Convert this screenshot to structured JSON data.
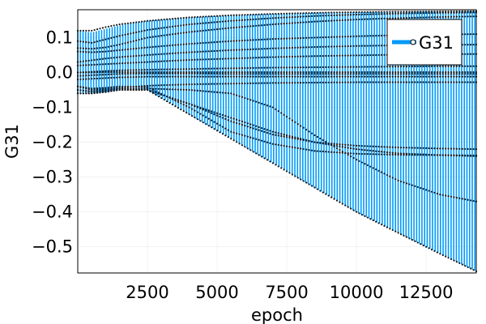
{
  "chart_data": {
    "type": "line",
    "title": "",
    "xlabel": "epoch",
    "ylabel": "G31",
    "xlim": [
      0,
      14300
    ],
    "ylim": [
      -0.575,
      0.18
    ],
    "xticks": [
      2500,
      5000,
      7500,
      10000,
      12500
    ],
    "xtick_labels": [
      "2500",
      "5000",
      "7500",
      "10000",
      "12500"
    ],
    "yticks": [
      0.1,
      0.0,
      -0.1,
      -0.2,
      -0.3,
      -0.4,
      -0.5
    ],
    "ytick_labels": [
      "0.1",
      "0.0",
      "−0.1",
      "−0.2",
      "−0.3",
      "−0.4",
      "−0.5"
    ],
    "grid": true,
    "legend_position": "top-right",
    "series": [
      {
        "name": "G31",
        "color": "#009af9",
        "marker_color": "#1a1a1a",
        "x": [
          0,
          500,
          1000,
          1500,
          2500,
          4000,
          5500,
          7000,
          8500,
          10000,
          11500,
          13000,
          14300
        ],
        "upper": [
          0.12,
          0.115,
          0.125,
          0.135,
          0.148,
          0.158,
          0.164,
          0.168,
          0.171,
          0.173,
          0.174,
          0.175,
          0.176
        ],
        "lower": [
          -0.06,
          -0.06,
          -0.056,
          -0.05,
          -0.05,
          -0.12,
          -0.19,
          -0.26,
          -0.33,
          -0.4,
          -0.46,
          -0.52,
          -0.57
        ],
        "traces": [
          [
            0.12,
            0.12,
            0.13,
            0.138,
            0.148,
            0.158,
            0.164,
            0.168,
            0.171,
            0.173,
            0.174,
            0.175,
            0.176
          ],
          [
            0.09,
            0.085,
            0.095,
            0.105,
            0.122,
            0.138,
            0.148,
            0.156,
            0.162,
            0.166,
            0.169,
            0.171,
            0.172
          ],
          [
            0.07,
            0.068,
            0.072,
            0.08,
            0.1,
            0.116,
            0.128,
            0.138,
            0.146,
            0.152,
            0.156,
            0.159,
            0.161
          ],
          [
            0.06,
            0.058,
            0.06,
            0.064,
            0.072,
            0.082,
            0.09,
            0.096,
            0.1,
            0.104,
            0.107,
            0.109,
            0.11
          ],
          [
            0.03,
            0.035,
            0.04,
            0.044,
            0.05,
            0.058,
            0.064,
            0.069,
            0.073,
            0.076,
            0.078,
            0.079,
            0.08
          ],
          [
            0.02,
            0.022,
            0.024,
            0.026,
            0.03,
            0.036,
            0.04,
            0.044,
            0.047,
            0.049,
            0.051,
            0.052,
            0.053
          ],
          [
            0.0,
            0.002,
            0.004,
            0.006,
            0.008,
            0.01,
            0.012,
            0.014,
            0.015,
            0.016,
            0.017,
            0.018,
            0.018
          ],
          [
            0.0,
            0.0,
            0.001,
            0.001,
            0.001,
            0.001,
            0.001,
            0.001,
            0.001,
            0.001,
            0.001,
            0.001,
            0.001
          ],
          [
            -0.01,
            -0.008,
            -0.006,
            -0.004,
            -0.003,
            -0.003,
            -0.004,
            -0.004,
            -0.004,
            -0.004,
            -0.004,
            -0.004,
            -0.004
          ],
          [
            -0.02,
            -0.018,
            -0.016,
            -0.014,
            -0.012,
            -0.012,
            -0.012,
            -0.012,
            -0.012,
            -0.012,
            -0.012,
            -0.012,
            -0.012
          ],
          [
            -0.04,
            -0.05,
            -0.048,
            -0.044,
            -0.038,
            -0.034,
            -0.032,
            -0.03,
            -0.029,
            -0.028,
            -0.028,
            -0.028,
            -0.028
          ],
          [
            -0.05,
            -0.055,
            -0.052,
            -0.045,
            -0.05,
            -0.09,
            -0.14,
            -0.178,
            -0.2,
            -0.21,
            -0.215,
            -0.218,
            -0.22
          ],
          [
            -0.04,
            -0.046,
            -0.044,
            -0.04,
            -0.042,
            -0.1,
            -0.17,
            -0.205,
            -0.225,
            -0.233,
            -0.236,
            -0.237,
            -0.238
          ],
          [
            -0.06,
            -0.06,
            -0.056,
            -0.05,
            -0.05,
            -0.09,
            -0.13,
            -0.17,
            -0.2,
            -0.22,
            -0.232,
            -0.237,
            -0.24
          ],
          [
            -0.05,
            -0.055,
            -0.052,
            -0.048,
            -0.046,
            -0.05,
            -0.06,
            -0.1,
            -0.18,
            -0.25,
            -0.31,
            -0.35,
            -0.37
          ],
          [
            -0.06,
            -0.06,
            -0.056,
            -0.05,
            -0.05,
            -0.12,
            -0.19,
            -0.26,
            -0.33,
            -0.4,
            -0.46,
            -0.52,
            -0.57
          ]
        ]
      }
    ]
  }
}
